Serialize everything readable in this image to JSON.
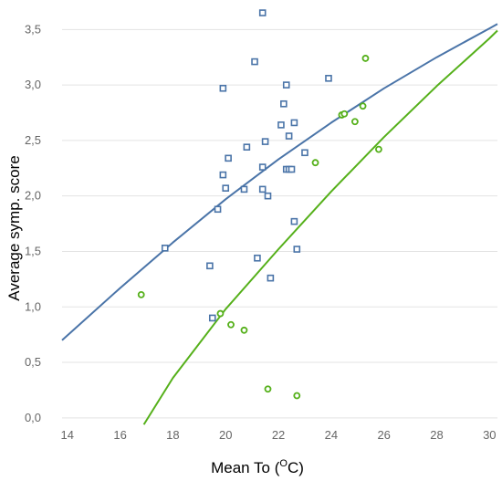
{
  "chart_data": {
    "type": "scatter",
    "title": "",
    "xlabel_main": "Mean To (",
    "xlabel_sup": "O",
    "xlabel_tail": "C)",
    "ylabel": "Average symp. score",
    "xlim": [
      13.8,
      30.3
    ],
    "ylim": [
      -0.1,
      3.7
    ],
    "xticks": [
      "14",
      "16",
      "18",
      "20",
      "22",
      "24",
      "26",
      "28",
      "30"
    ],
    "yticks": [
      "0,0",
      "0,5",
      "1,0",
      "1,5",
      "2,0",
      "2,5",
      "3,0",
      "3,5"
    ],
    "grid": "horizontal",
    "legend": "none",
    "series": [
      {
        "marker": "square",
        "color": "#4a74a8",
        "x": [
          17.7,
          19.4,
          19.5,
          19.7,
          19.9,
          19.9,
          20.0,
          20.1,
          20.7,
          20.8,
          21.1,
          21.2,
          21.4,
          21.4,
          21.4,
          21.5,
          21.6,
          21.7,
          22.1,
          22.2,
          22.3,
          22.3,
          22.4,
          22.4,
          22.5,
          22.6,
          22.6,
          22.7,
          23.0,
          23.9
        ],
        "y": [
          1.53,
          1.37,
          0.9,
          1.88,
          2.97,
          2.19,
          2.07,
          2.34,
          2.06,
          2.44,
          3.21,
          1.44,
          2.26,
          3.65,
          2.06,
          2.49,
          2.0,
          1.26,
          2.64,
          2.83,
          3.0,
          2.24,
          2.24,
          2.54,
          2.24,
          1.77,
          2.66,
          1.52,
          2.39,
          3.06
        ]
      },
      {
        "marker": "circle",
        "color": "#55b01a",
        "x": [
          16.8,
          19.8,
          20.2,
          20.7,
          21.6,
          22.7,
          23.4,
          24.4,
          24.5,
          24.9,
          25.2,
          25.3,
          25.8
        ],
        "y": [
          1.11,
          0.94,
          0.84,
          0.79,
          0.26,
          0.2,
          2.3,
          2.73,
          2.74,
          2.67,
          2.81,
          3.24,
          2.42
        ]
      }
    ],
    "trendlines": [
      {
        "color": "#4a74a8",
        "x": [
          13.8,
          16,
          18,
          20,
          22,
          24,
          26,
          28,
          30,
          30.3
        ],
        "y": [
          0.7,
          1.17,
          1.58,
          1.97,
          2.33,
          2.66,
          2.97,
          3.25,
          3.51,
          3.55
        ]
      },
      {
        "color": "#55b01a",
        "x": [
          16.9,
          18,
          20,
          22,
          24,
          26,
          28,
          30,
          30.3
        ],
        "y": [
          -0.06,
          0.36,
          0.98,
          1.52,
          2.04,
          2.53,
          2.99,
          3.42,
          3.49
        ]
      }
    ]
  }
}
